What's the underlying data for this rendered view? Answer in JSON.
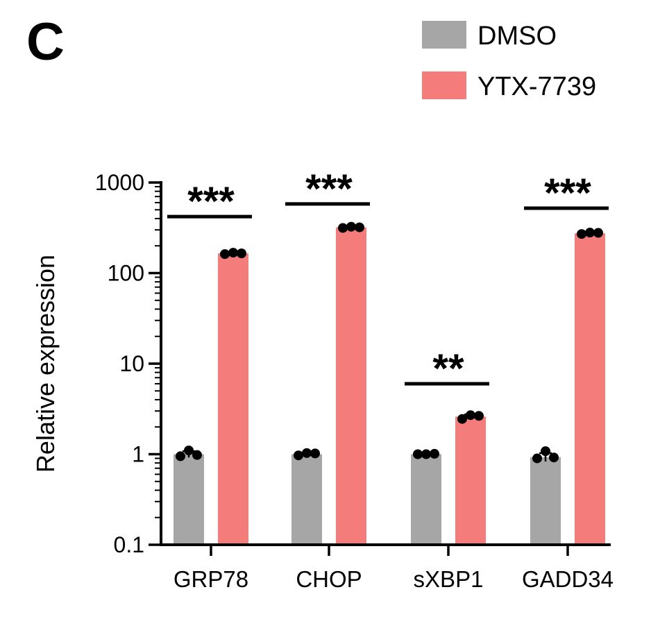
{
  "panel_label": "C",
  "chart_data": {
    "type": "bar",
    "yscale": "log",
    "ylim": [
      0.1,
      1000
    ],
    "yticks": [
      {
        "value": 0.1,
        "label": "0.1"
      },
      {
        "value": 1,
        "label": "1"
      },
      {
        "value": 10,
        "label": "10"
      },
      {
        "value": 100,
        "label": "100"
      },
      {
        "value": 1000,
        "label": "1000"
      }
    ],
    "ylabel": "Relative expression",
    "xlabel": "",
    "categories": [
      "GRP78",
      "CHOP",
      "sXBP1",
      "GADD34"
    ],
    "series": [
      {
        "name": "DMSO",
        "color": "#a6a6a6",
        "values": [
          1.0,
          1.0,
          1.0,
          0.93
        ],
        "points": [
          [
            0.95,
            1.1,
            0.98
          ],
          [
            0.97,
            1.03,
            1.02
          ],
          [
            1.0,
            1.0,
            1.01
          ],
          [
            0.9,
            1.08,
            0.92
          ]
        ],
        "error": [
          0.08,
          0.04,
          0.02,
          0.1
        ]
      },
      {
        "name": "YTX-7739",
        "color": "#f47c7a",
        "values": [
          165,
          320,
          2.6,
          275
        ],
        "points": [
          [
            162,
            168,
            165
          ],
          [
            315,
            325,
            320
          ],
          [
            2.45,
            2.7,
            2.65
          ],
          [
            270,
            280,
            278
          ]
        ],
        "error": [
          4,
          6,
          0.15,
          6
        ]
      }
    ],
    "significance": [
      {
        "category": "GRP78",
        "label": "***",
        "y": 420
      },
      {
        "category": "CHOP",
        "label": "***",
        "y": 580
      },
      {
        "category": "sXBP1",
        "label": "**",
        "y": 6
      },
      {
        "category": "GADD34",
        "label": "***",
        "y": 520
      }
    ],
    "legend": {
      "position": "top-right",
      "entries": [
        {
          "label": "DMSO",
          "color": "#a6a6a6"
        },
        {
          "label": "YTX-7739",
          "color": "#f47c7a"
        }
      ]
    },
    "grid": false
  }
}
